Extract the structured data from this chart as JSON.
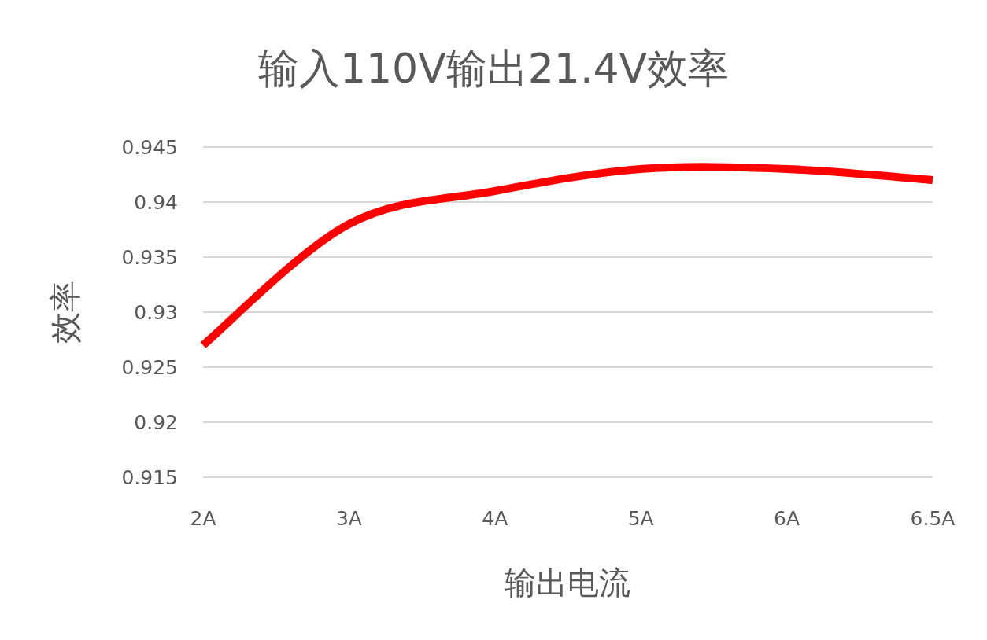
{
  "chart_data": {
    "type": "line",
    "title": "输入110V输出21.4V效率",
    "xlabel": "输出电流",
    "ylabel": "效率",
    "categories": [
      "2A",
      "3A",
      "4A",
      "5A",
      "6A",
      "6.5A"
    ],
    "series": [
      {
        "color": "#ff0000",
        "values": [
          0.927,
          0.938,
          0.941,
          0.943,
          0.943,
          0.942
        ]
      }
    ],
    "ylim": [
      0.915,
      0.945
    ],
    "yticks": [
      0.915,
      0.92,
      0.925,
      0.93,
      0.935,
      0.94,
      0.945
    ],
    "grid": "y",
    "marker": "none",
    "line_style": "solid"
  }
}
